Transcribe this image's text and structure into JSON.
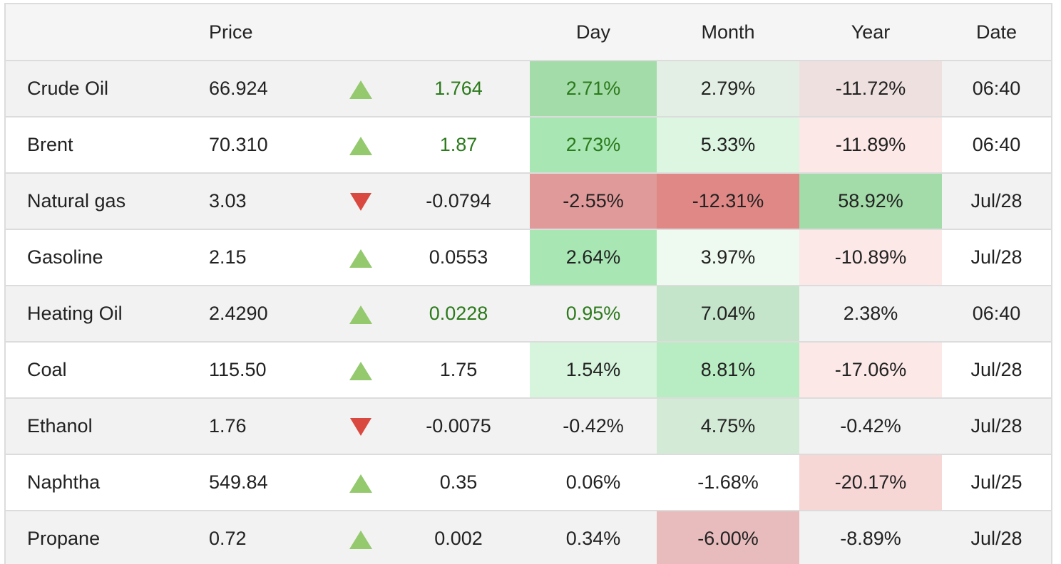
{
  "headers": {
    "name": "",
    "price": "Price",
    "arrow": "",
    "change": "",
    "day": "Day",
    "month": "Month",
    "year": "Year",
    "date": "Date"
  },
  "rows": [
    {
      "name": "Crude Oil",
      "price": "66.924",
      "dir": "up",
      "change": "1.764",
      "change_color": "#2b7a1b",
      "day": "2.71%",
      "day_color": "#2b7a1b",
      "day_bg": "#a3dba9",
      "month": "2.79%",
      "month_bg": "#e3efe4",
      "year": "-11.72%",
      "year_bg": "#ede0df",
      "date": "06:40"
    },
    {
      "name": "Brent",
      "price": "70.310",
      "dir": "up",
      "change": "1.87",
      "change_color": "#2b7a1b",
      "day": "2.73%",
      "day_color": "#2b7a1b",
      "day_bg": "#a8e6b4",
      "month": "5.33%",
      "month_bg": "#dcf6e1",
      "year": "-11.89%",
      "year_bg": "#fbe8e7",
      "date": "06:40"
    },
    {
      "name": "Natural gas",
      "price": "3.03",
      "dir": "down",
      "change": "-0.0794",
      "change_color": "#222222",
      "day": "-2.55%",
      "day_color": "#222222",
      "day_bg": "#e19a9a",
      "month": "-12.31%",
      "month_bg": "#e08886",
      "year": "58.92%",
      "year_bg": "#a3dba9",
      "date": "Jul/28"
    },
    {
      "name": "Gasoline",
      "price": "2.15",
      "dir": "up",
      "change": "0.0553",
      "change_color": "#222222",
      "day": "2.64%",
      "day_color": "#222222",
      "day_bg": "#a8e6b4",
      "month": "3.97%",
      "month_bg": "#eefaf0",
      "year": "-10.89%",
      "year_bg": "#fbe8e7",
      "date": "Jul/28"
    },
    {
      "name": "Heating Oil",
      "price": "2.4290",
      "dir": "up",
      "change": "0.0228",
      "change_color": "#2b7a1b",
      "day": "0.95%",
      "day_color": "#2b7a1b",
      "day_bg": "",
      "month": "7.04%",
      "month_bg": "#c4e5c9",
      "year": "2.38%",
      "year_bg": "",
      "date": "06:40"
    },
    {
      "name": "Coal",
      "price": "115.50",
      "dir": "up",
      "change": "1.75",
      "change_color": "#222222",
      "day": "1.54%",
      "day_color": "#222222",
      "day_bg": "#d6f5dc",
      "month": "8.81%",
      "month_bg": "#b8ecc2",
      "year": "-17.06%",
      "year_bg": "#fbe8e7",
      "date": "Jul/28"
    },
    {
      "name": "Ethanol",
      "price": "1.76",
      "dir": "down",
      "change": "-0.0075",
      "change_color": "#222222",
      "day": "-0.42%",
      "day_color": "#222222",
      "day_bg": "",
      "month": "4.75%",
      "month_bg": "#d3ebd6",
      "year": "-0.42%",
      "year_bg": "",
      "date": "Jul/28"
    },
    {
      "name": "Naphtha",
      "price": "549.84",
      "dir": "up",
      "change": "0.35",
      "change_color": "#222222",
      "day": "0.06%",
      "day_color": "#222222",
      "day_bg": "",
      "month": "-1.68%",
      "month_bg": "",
      "year": "-20.17%",
      "year_bg": "#f7d6d6",
      "date": "Jul/25"
    },
    {
      "name": "Propane",
      "price": "0.72",
      "dir": "up",
      "change": "0.002",
      "change_color": "#222222",
      "day": "0.34%",
      "day_color": "#222222",
      "day_bg": "",
      "month": "-6.00%",
      "month_bg": "#e8bcbc",
      "year": "-8.89%",
      "year_bg": "",
      "date": "Jul/28"
    }
  ]
}
